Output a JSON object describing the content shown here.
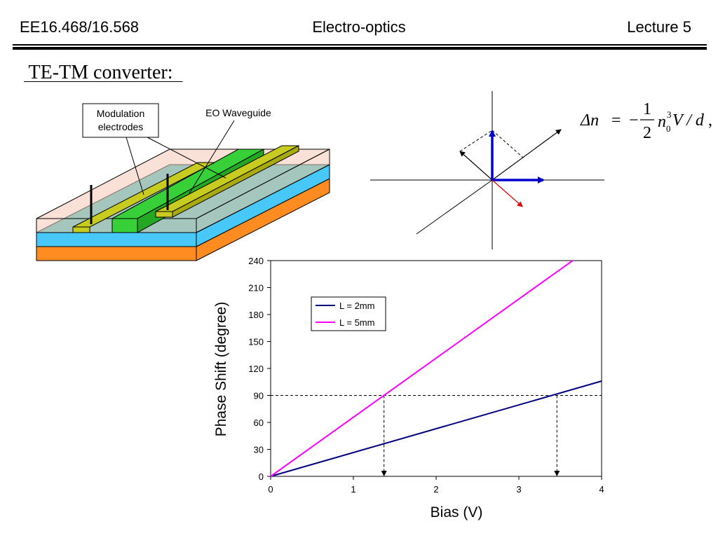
{
  "header": {
    "course": "EE16.468/16.568",
    "topic": "Electro-optics",
    "lecture": "Lecture 5"
  },
  "section_title": " TE-TM converter:  ",
  "device_diagram": {
    "label_electrodes_line1": "Modulation",
    "label_electrodes_line2": "electrodes",
    "label_waveguide": "EO Waveguide",
    "colors": {
      "top_cladding": "#f6c8b8",
      "eo_layer": "#40c4c0",
      "substrate": "#48c8f8",
      "base": "#ff8c20",
      "electrode": "#c8cc20",
      "waveguide": "#38d038"
    }
  },
  "vector_diagram": {
    "axis_color": "#000000",
    "vector_colors": [
      "#0000cc",
      "#0000cc",
      "#e00000"
    ]
  },
  "equation": {
    "lhs": "Δn",
    "eq": "=",
    "minus": "−",
    "frac_num": "1",
    "frac_den": "2",
    "n_base": "n",
    "n_sub": "0",
    "n_sup": "3",
    "rest": "V / d",
    "trail": ","
  },
  "chart_data": {
    "type": "line",
    "xlabel": "Bias (V)",
    "ylabel": "Phase Shift (degree)",
    "xlim": [
      0,
      4
    ],
    "ylim": [
      0,
      240
    ],
    "xticks": [
      0,
      1,
      2,
      3,
      4
    ],
    "yticks": [
      0,
      30,
      60,
      90,
      120,
      150,
      180,
      210,
      240
    ],
    "grid": false,
    "legend_position": "top-left",
    "series": [
      {
        "name": "L = 2mm",
        "color": "#000080",
        "x": [
          0,
          4
        ],
        "y": [
          0,
          106
        ]
      },
      {
        "name": "L = 5mm",
        "color": "#ff00ff",
        "x": [
          0,
          3.65
        ],
        "y": [
          0,
          240
        ]
      }
    ],
    "annotations": [
      {
        "type": "hline-dashed",
        "y": 90,
        "x_from": 0,
        "x_to": 4
      },
      {
        "type": "vline-dashed-arrow",
        "x": 1.37,
        "y_from": 90,
        "y_to": 0
      },
      {
        "type": "vline-dashed-arrow",
        "x": 3.46,
        "y_from": 90,
        "y_to": 0
      }
    ]
  }
}
